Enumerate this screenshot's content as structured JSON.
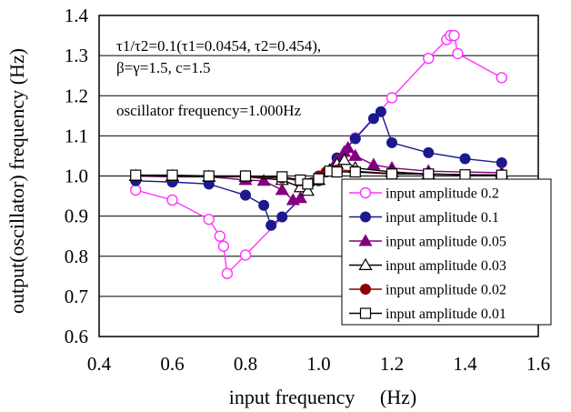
{
  "chart_data": {
    "type": "line",
    "xlabel": "input frequency　 (Hz)",
    "ylabel": "output(oscillator) frequency (Hz)",
    "xlim": [
      0.4,
      1.6
    ],
    "ylim": [
      0.6,
      1.4
    ],
    "x_ticks": [
      "0.4",
      "0.6",
      "0.8",
      "1.0",
      "1.2",
      "1.4",
      "1.6"
    ],
    "y_ticks": [
      "0.6",
      "0.7",
      "0.8",
      "0.9",
      "1.0",
      "1.1",
      "1.2",
      "1.3",
      "1.4"
    ],
    "grid": "horizontal",
    "legend_position": "bottom-right",
    "annotations": {
      "line1": "τ1/τ2=0.1(τ1=0.0454, τ2=0.454),",
      "line2": "β=γ=1.5, c=1.5",
      "line3": "oscillator frequency=1.000Hz"
    },
    "series": [
      {
        "name": "input amplitude 0.2",
        "marker": "open-circle",
        "color": "#ff33ff",
        "x": [
          0.5,
          0.6,
          0.7,
          0.73,
          0.74,
          0.75,
          0.8,
          1.0,
          1.1,
          1.2,
          1.3,
          1.35,
          1.36,
          1.37,
          1.38,
          1.5
        ],
        "y": [
          0.965,
          0.94,
          0.892,
          0.85,
          0.825,
          0.757,
          0.803,
          0.99,
          1.095,
          1.195,
          1.293,
          1.34,
          1.35,
          1.35,
          1.305,
          1.245
        ]
      },
      {
        "name": "input amplitude 0.1",
        "marker": "filled-circle",
        "color": "#1a1a8c",
        "x": [
          0.5,
          0.6,
          0.7,
          0.8,
          0.85,
          0.87,
          0.9,
          1.0,
          1.05,
          1.1,
          1.15,
          1.17,
          1.2,
          1.3,
          1.4,
          1.5
        ],
        "y": [
          0.988,
          0.985,
          0.98,
          0.952,
          0.927,
          0.877,
          0.898,
          0.988,
          1.045,
          1.093,
          1.143,
          1.16,
          1.083,
          1.058,
          1.043,
          1.033
        ]
      },
      {
        "name": "input amplitude 0.05",
        "marker": "filled-triangle",
        "color": "#800080",
        "x": [
          0.5,
          0.6,
          0.7,
          0.8,
          0.85,
          0.9,
          0.93,
          0.95,
          1.0,
          1.05,
          1.07,
          1.08,
          1.1,
          1.15,
          1.2,
          1.3,
          1.5
        ],
        "y": [
          1.0,
          0.998,
          0.998,
          0.99,
          0.988,
          0.965,
          0.94,
          0.945,
          0.99,
          1.04,
          1.06,
          1.07,
          1.05,
          1.028,
          1.02,
          1.012,
          1.008
        ]
      },
      {
        "name": "input amplitude 0.03",
        "marker": "open-triangle",
        "color": "#000000",
        "x": [
          0.5,
          0.6,
          0.7,
          0.8,
          0.9,
          0.95,
          0.97,
          1.0,
          1.03,
          1.05,
          1.07,
          1.1,
          1.2,
          1.3,
          1.5
        ],
        "y": [
          1.0,
          1.0,
          0.998,
          0.998,
          0.99,
          0.972,
          0.963,
          0.99,
          1.015,
          1.03,
          1.04,
          1.02,
          1.01,
          1.005,
          1.002
        ]
      },
      {
        "name": "input amplitude 0.02",
        "marker": "filled-circle",
        "color": "#8b0000",
        "x": [
          0.5,
          0.6,
          0.7,
          0.8,
          0.9,
          0.95,
          1.0,
          1.02,
          1.05,
          1.1,
          1.2,
          1.3,
          1.5
        ],
        "y": [
          1.002,
          1.001,
          1.0,
          0.998,
          0.995,
          0.988,
          1.0,
          1.01,
          1.015,
          1.012,
          1.006,
          1.004,
          1.002
        ]
      },
      {
        "name": "input amplitude 0.01",
        "marker": "open-square",
        "color": "#000000",
        "x": [
          0.5,
          0.6,
          0.7,
          0.8,
          0.9,
          0.95,
          0.97,
          1.0,
          1.03,
          1.05,
          1.1,
          1.2,
          1.3,
          1.4,
          1.5
        ],
        "y": [
          1.002,
          1.002,
          1.0,
          1.0,
          0.998,
          0.99,
          0.98,
          0.993,
          1.012,
          1.01,
          1.01,
          1.005,
          1.005,
          1.003,
          1.002
        ]
      }
    ]
  }
}
